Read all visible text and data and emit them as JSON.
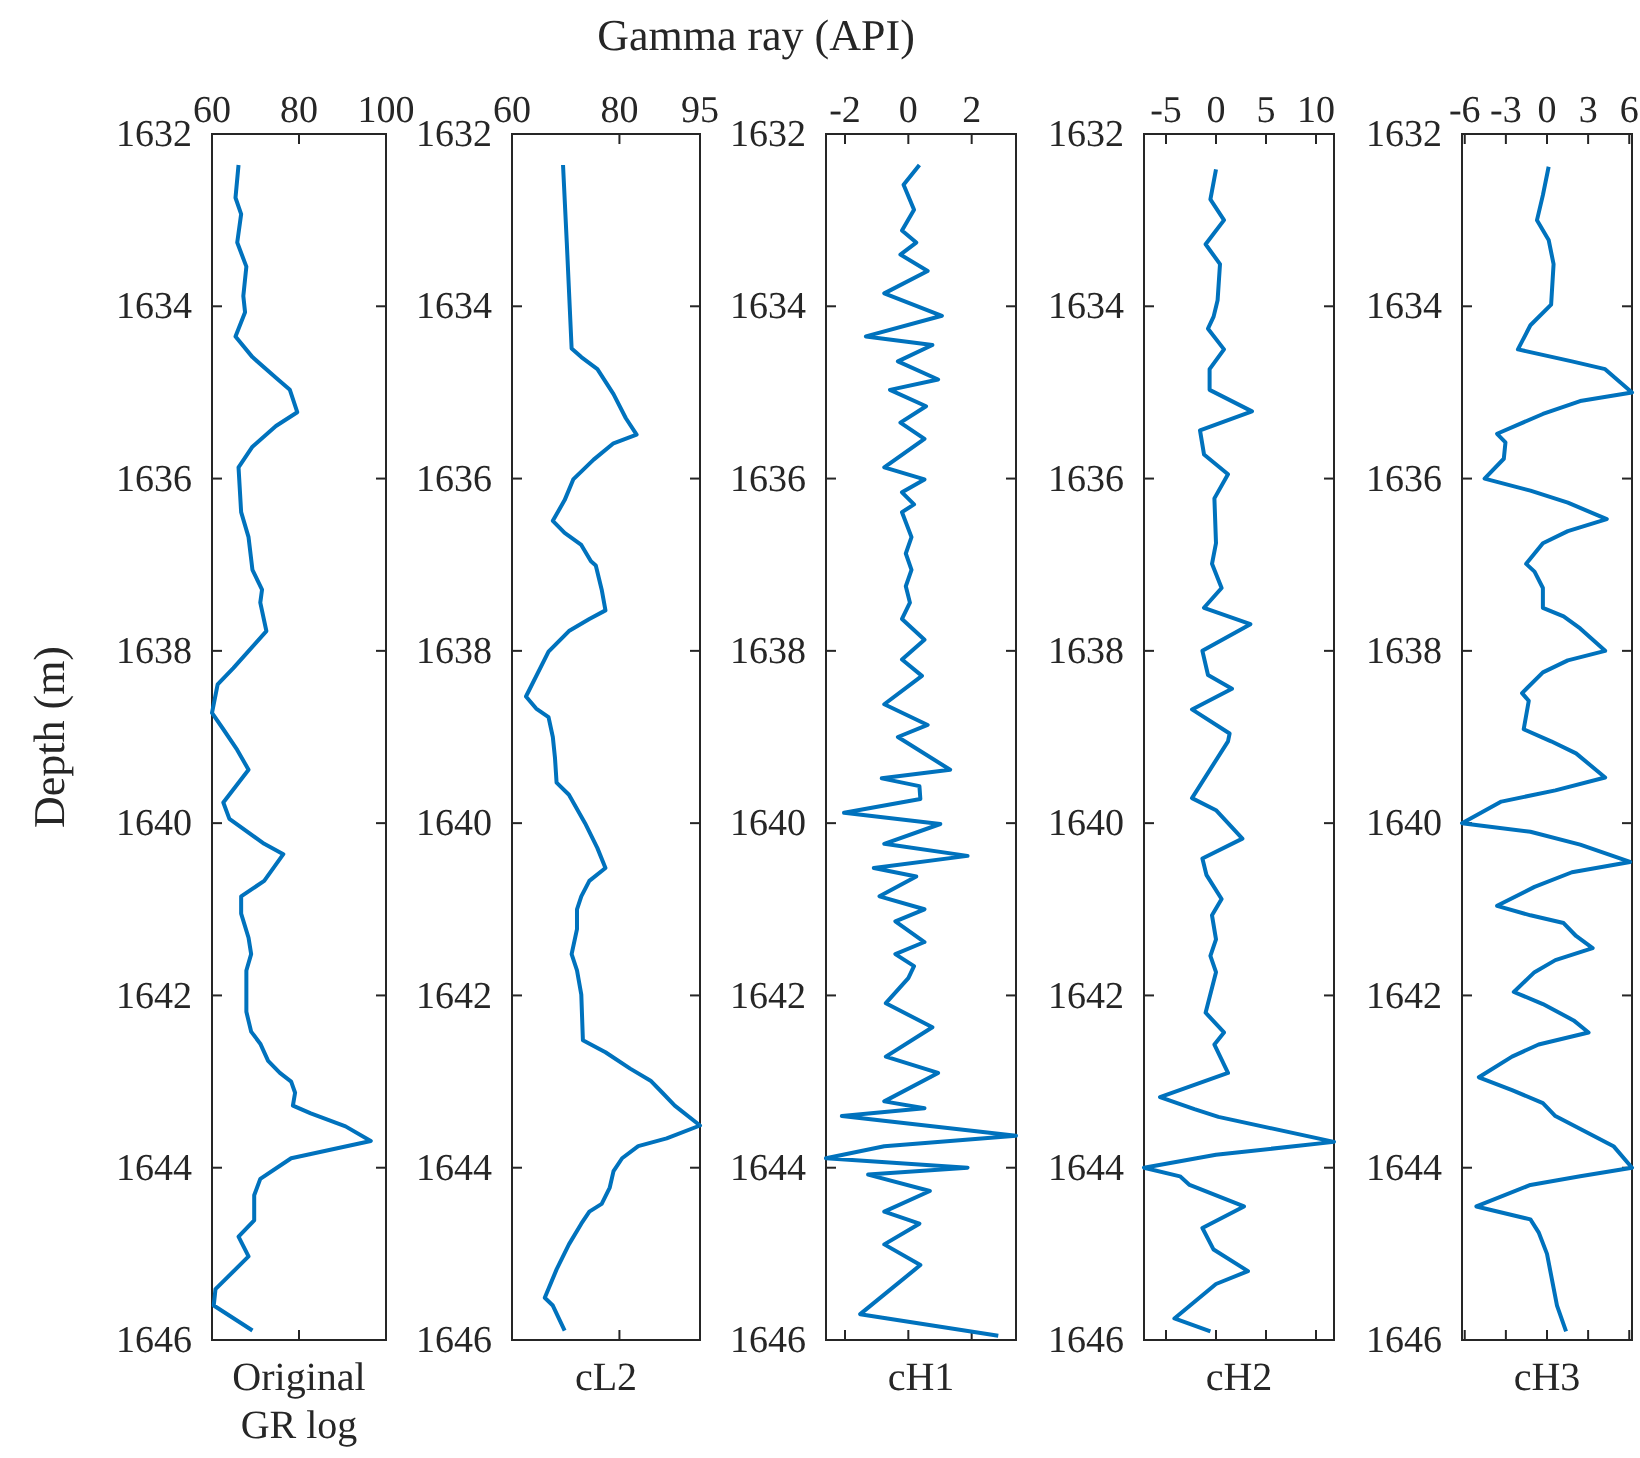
{
  "chart_data": [
    {
      "type": "other",
      "title": "Gamma ray (API)"
    },
    {
      "type": "line",
      "ylabel": "Depth (m)",
      "xlabel": "Original GR log",
      "xlim": [
        60,
        100
      ],
      "xticks": [
        60,
        80,
        100
      ],
      "ylim": [
        1646,
        1632
      ],
      "yticks": [
        1632,
        1634,
        1636,
        1638,
        1640,
        1642,
        1644,
        1646
      ],
      "series": [
        {
          "color": "#0072bd",
          "x": [
            66.1,
            65.4,
            66.7,
            65.8,
            67.9,
            67.2,
            67.6,
            65.4,
            69.3,
            74.7,
            77.9,
            79.6,
            74.7,
            69.3,
            66.1,
            66.7,
            68.4,
            69.3,
            71.5,
            71.1,
            72.5,
            64.9,
            61.3,
            60,
            62.6,
            65.8,
            68.4,
            62.6,
            64.0,
            72.0,
            76.4,
            72.0,
            66.7,
            66.7,
            68.4,
            69.0,
            67.9,
            67.9,
            69.0,
            71.1,
            72.9,
            75.6,
            78.2,
            79.1,
            78.6,
            82.7,
            90.7,
            96.5,
            78.2,
            71.1,
            69.7,
            69.7,
            66.1,
            68.4,
            60.8,
            60.4,
            69.3
          ],
          "values": [
            1632.36,
            1632.74,
            1632.93,
            1633.26,
            1633.54,
            1633.88,
            1634.07,
            1634.35,
            1634.59,
            1634.83,
            1634.97,
            1635.23,
            1635.39,
            1635.63,
            1635.87,
            1636.39,
            1636.68,
            1637.06,
            1637.29,
            1637.44,
            1637.77,
            1638.2,
            1638.39,
            1638.72,
            1638.91,
            1639.15,
            1639.38,
            1639.76,
            1639.95,
            1640.24,
            1640.36,
            1640.67,
            1640.85,
            1641.05,
            1641.33,
            1641.52,
            1641.71,
            1642.19,
            1642.42,
            1642.56,
            1642.76,
            1642.9,
            1643.0,
            1643.13,
            1643.28,
            1643.37,
            1643.52,
            1643.69,
            1643.89,
            1644.13,
            1644.32,
            1644.61,
            1644.8,
            1645.03,
            1645.41,
            1645.6,
            1645.89
          ]
        }
      ]
    },
    {
      "type": "line",
      "xlabel": "cL2",
      "xlim": [
        60,
        95
      ],
      "xticks": [
        60,
        80,
        95
      ],
      "ylim": [
        1646,
        1632
      ],
      "yticks": [
        1632,
        1634,
        1636,
        1638,
        1640,
        1642,
        1644,
        1646
      ],
      "series": [
        {
          "color": "#0072bd",
          "x": [
            69.5,
            70.2,
            71.1,
            72.9,
            75.9,
            78.9,
            81.2,
            83.2,
            78.9,
            75.2,
            71.4,
            69.8,
            67.6,
            69.8,
            72.9,
            74.7,
            75.6,
            76.7,
            77.4,
            74.4,
            70.6,
            66.8,
            62.6,
            64.5,
            66.8,
            67.6,
            68.0,
            68.3,
            70.6,
            73.6,
            75.9,
            77.4,
            74.4,
            72.9,
            72.1,
            72.1,
            71.1,
            72.1,
            72.9,
            73.2,
            77.4,
            82.0,
            85.8,
            88.0,
            90.3,
            95,
            88.8,
            83.5,
            80.5,
            78.9,
            78.2,
            76.7,
            74.4,
            72.9,
            70.6,
            68.3,
            66.1,
            67.6,
            69.8
          ],
          "values": [
            1632.36,
            1633.26,
            1634.49,
            1634.59,
            1634.73,
            1635.02,
            1635.3,
            1635.49,
            1635.59,
            1635.78,
            1636.01,
            1636.25,
            1636.49,
            1636.63,
            1636.77,
            1636.96,
            1637.01,
            1637.29,
            1637.53,
            1637.63,
            1637.77,
            1638.01,
            1638.53,
            1638.67,
            1638.77,
            1639.0,
            1639.24,
            1639.53,
            1639.67,
            1640.0,
            1640.29,
            1640.52,
            1640.67,
            1640.85,
            1641.0,
            1641.23,
            1641.52,
            1641.71,
            1641.99,
            1642.52,
            1642.66,
            1642.85,
            1642.99,
            1643.13,
            1643.28,
            1643.51,
            1643.66,
            1643.75,
            1643.89,
            1644.04,
            1644.23,
            1644.42,
            1644.51,
            1644.65,
            1644.89,
            1645.18,
            1645.51,
            1645.6,
            1645.89
          ]
        }
      ]
    },
    {
      "type": "line",
      "xlabel": "cH1",
      "xlim": [
        -2.6,
        3.4
      ],
      "xticks": [
        -2,
        0,
        2
      ],
      "ylim": [
        1646,
        1632
      ],
      "yticks": [
        1632,
        1634,
        1636,
        1638,
        1640,
        1642,
        1644,
        1646
      ],
      "series": [
        {
          "color": "#0072bd",
          "x": [
            0.35,
            -0.15,
            0.18,
            -0.2,
            0.25,
            -0.25,
            0.61,
            -0.76,
            1.06,
            -1.34,
            0.76,
            -0.33,
            0.94,
            -0.58,
            0.56,
            -0.25,
            0.51,
            -0.76,
            0.51,
            -0.2,
            0.18,
            -0.2,
            0.1,
            -0.08,
            0.1,
            -0.08,
            0.05,
            -0.2,
            0.51,
            -0.2,
            0.43,
            -0.76,
            0.61,
            -0.33,
            1.32,
            -0.84,
            0.35,
            0.38,
            -2.03,
            1.01,
            -0.76,
            1.87,
            -1.09,
            0.25,
            -0.91,
            0.51,
            -0.41,
            0.51,
            -0.41,
            0.18,
            0,
            -0.71,
            0.76,
            -0.71,
            0.94,
            -0.76,
            0.51,
            -2.1,
            3.4,
            -0.76,
            -2.6,
            1.87,
            -1.27,
            0.68,
            -0.76,
            0.35,
            -0.76,
            0.38,
            -1.52,
            2.84
          ],
          "values": [
            1632.36,
            1632.59,
            1632.88,
            1633.12,
            1633.26,
            1633.4,
            1633.59,
            1633.85,
            1634.11,
            1634.35,
            1634.45,
            1634.64,
            1634.85,
            1634.97,
            1635.16,
            1635.35,
            1635.54,
            1635.87,
            1636.01,
            1636.16,
            1636.3,
            1636.39,
            1636.68,
            1636.87,
            1637.06,
            1637.25,
            1637.44,
            1637.63,
            1637.87,
            1638.1,
            1638.29,
            1638.62,
            1638.86,
            1639.0,
            1639.38,
            1639.48,
            1639.57,
            1639.72,
            1639.88,
            1640.01,
            1640.24,
            1640.38,
            1640.52,
            1640.62,
            1640.85,
            1641.0,
            1641.14,
            1641.38,
            1641.52,
            1641.66,
            1641.8,
            1642.09,
            1642.37,
            1642.71,
            1642.9,
            1643.23,
            1643.31,
            1643.4,
            1643.63,
            1643.75,
            1643.89,
            1644.0,
            1644.08,
            1644.27,
            1644.51,
            1644.65,
            1644.89,
            1645.13,
            1645.7,
            1645.95
          ]
        }
      ]
    },
    {
      "type": "line",
      "xlabel": "cH2",
      "xlim": [
        -7.2,
        11.8
      ],
      "xticks": [
        -5,
        0,
        5,
        10
      ],
      "ylim": [
        1646,
        1632
      ],
      "yticks": [
        1632,
        1634,
        1636,
        1638,
        1640,
        1642,
        1644,
        1646
      ],
      "series": [
        {
          "color": "#0072bd",
          "x": [
            0,
            -0.56,
            0.8,
            -1.04,
            0.4,
            0.16,
            -0.24,
            -0.8,
            0.8,
            -0.64,
            -0.64,
            3.6,
            -1.6,
            -1.2,
            1.2,
            -0.16,
            0,
            -0.4,
            0.56,
            -1.2,
            3.44,
            -1.36,
            -0.8,
            1.6,
            -2.4,
            1.36,
            1.2,
            -2.4,
            0,
            2.64,
            -1.36,
            -0.96,
            0.56,
            -0.4,
            0,
            -0.56,
            0,
            -1.04,
            0.8,
            -0.16,
            1.2,
            -5.6,
            -2.16,
            0.24,
            11.8,
            0,
            -7.2,
            -3.6,
            -2.64,
            2.8,
            -1.36,
            -0.24,
            3.2,
            0,
            -4.16,
            -0.56
          ],
          "values": [
            1632.41,
            1632.76,
            1633.0,
            1633.28,
            1633.51,
            1633.93,
            1634.12,
            1634.26,
            1634.5,
            1634.73,
            1634.97,
            1635.22,
            1635.44,
            1635.72,
            1635.95,
            1636.23,
            1636.75,
            1636.99,
            1637.27,
            1637.5,
            1637.69,
            1638.0,
            1638.28,
            1638.44,
            1638.68,
            1638.96,
            1639.05,
            1639.71,
            1639.85,
            1640.18,
            1640.41,
            1640.6,
            1640.88,
            1641.07,
            1641.35,
            1641.54,
            1641.73,
            1642.2,
            1642.43,
            1642.57,
            1642.9,
            1643.18,
            1643.32,
            1643.41,
            1643.7,
            1643.85,
            1644.0,
            1644.1,
            1644.2,
            1644.45,
            1644.7,
            1644.95,
            1645.2,
            1645.35,
            1645.75,
            1645.9
          ]
        }
      ]
    },
    {
      "type": "line",
      "xlabel": "cH3",
      "xlim": [
        -6.2,
        6.2
      ],
      "xticks": [
        -6,
        -3,
        0,
        3,
        6
      ],
      "ylim": [
        1646,
        1632
      ],
      "yticks": [
        1632,
        1634,
        1636,
        1638,
        1640,
        1642,
        1644,
        1646
      ],
      "series": [
        {
          "color": "#0072bd",
          "x": [
            0.12,
            -0.3,
            -0.73,
            0.12,
            0.48,
            0.3,
            -1.21,
            -2.12,
            1.82,
            4.24,
            6.2,
            2.42,
            -0.3,
            -3.64,
            -3.03,
            -3.15,
            -4.55,
            -1.21,
            1.52,
            4.36,
            1.52,
            -0.3,
            -1.52,
            -0.91,
            -0.3,
            -0.3,
            1.21,
            2.42,
            4.24,
            1.52,
            -0.3,
            -1.82,
            -1.33,
            -1.7,
            0.3,
            2.12,
            4.24,
            0.61,
            -3.33,
            -6.2,
            -1.21,
            2.42,
            6.06,
            1.82,
            -0.91,
            -3.64,
            -1.21,
            1.21,
            2.12,
            3.33,
            0.61,
            -0.91,
            -2.42,
            -0.3,
            1.94,
            3.03,
            -0.61,
            -2.55,
            -4.97,
            -2.55,
            -0.3,
            0.61,
            3.03,
            4.85,
            6.2,
            2.42,
            -1.21,
            -5.15,
            -1.21,
            -0.61,
            0,
            0.12,
            0.73,
            1.39
          ],
          "values": [
            1632.38,
            1632.71,
            1633.0,
            1633.23,
            1633.51,
            1633.98,
            1634.22,
            1634.5,
            1634.64,
            1634.73,
            1635.0,
            1635.1,
            1635.25,
            1635.48,
            1635.58,
            1635.77,
            1636.0,
            1636.14,
            1636.28,
            1636.47,
            1636.61,
            1636.75,
            1636.99,
            1637.08,
            1637.27,
            1637.5,
            1637.6,
            1637.74,
            1638.0,
            1638.11,
            1638.25,
            1638.49,
            1638.58,
            1638.91,
            1639.05,
            1639.19,
            1639.47,
            1639.62,
            1639.75,
            1640.0,
            1640.1,
            1640.25,
            1640.45,
            1640.57,
            1640.74,
            1640.96,
            1641.07,
            1641.16,
            1641.31,
            1641.45,
            1641.59,
            1641.73,
            1641.96,
            1642.1,
            1642.29,
            1642.43,
            1642.57,
            1642.71,
            1642.95,
            1643.1,
            1643.25,
            1643.4,
            1643.6,
            1643.75,
            1644.0,
            1644.1,
            1644.2,
            1644.45,
            1644.6,
            1644.75,
            1645.0,
            1645.1,
            1645.6,
            1645.9
          ]
        }
      ]
    }
  ]
}
